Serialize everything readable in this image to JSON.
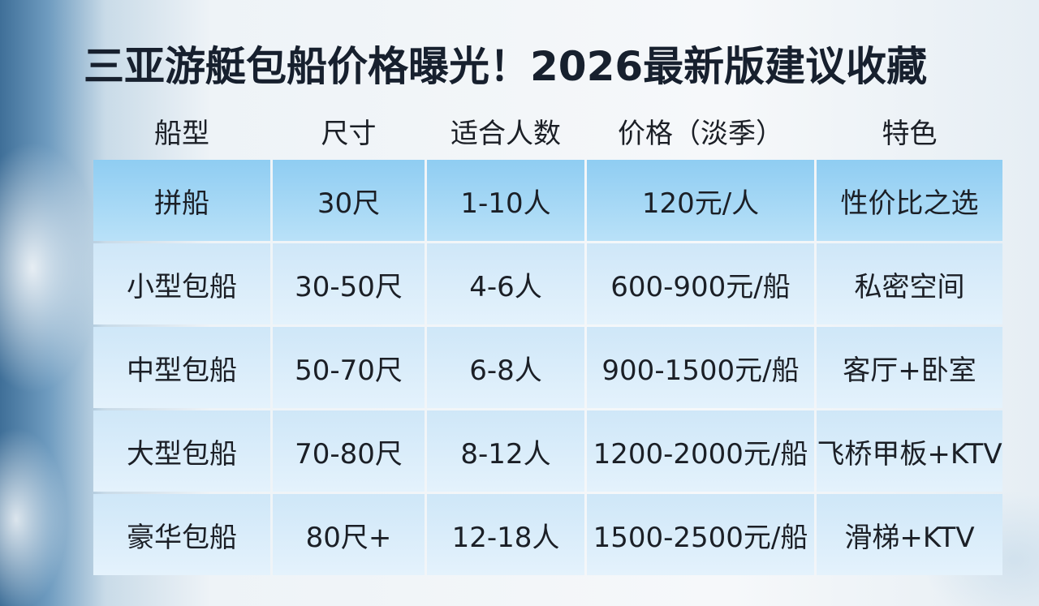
{
  "header": {
    "title": "三亚游艇包船价格曝光！2026最新版建议收藏"
  },
  "table": {
    "columns": [
      "船型",
      "尺寸",
      "适合人数",
      "价格（淡季）",
      "特色"
    ],
    "rows": [
      [
        "拼船",
        "30尺",
        "1-10人",
        "120元/人",
        "性价比之选"
      ],
      [
        "小型包船",
        "30-50尺",
        "4-6人",
        "600-900元/船",
        "私密空间"
      ],
      [
        "中型包船",
        "50-70尺",
        "6-8人",
        "900-1500元/船",
        "客厅+卧室"
      ],
      [
        "大型包船",
        "70-80尺",
        "8-12人",
        "1200-2000元/船",
        "飞桥甲板+KTV"
      ],
      [
        "豪华包船",
        "80尺+",
        "12-18人",
        "1500-2500元/船",
        "滑梯+KTV"
      ]
    ]
  }
}
